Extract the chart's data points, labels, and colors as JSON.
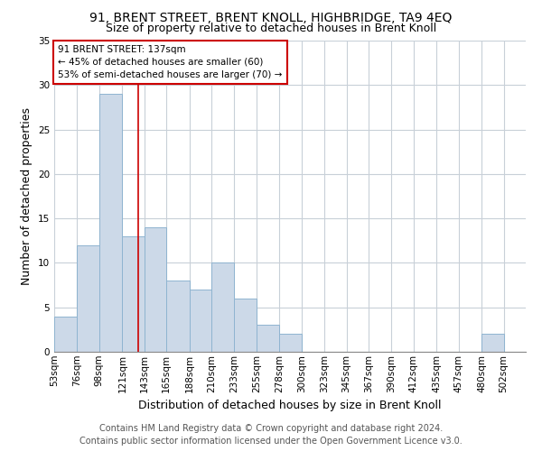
{
  "title": "91, BRENT STREET, BRENT KNOLL, HIGHBRIDGE, TA9 4EQ",
  "subtitle": "Size of property relative to detached houses in Brent Knoll",
  "xlabel": "Distribution of detached houses by size in Brent Knoll",
  "ylabel": "Number of detached properties",
  "bin_labels": [
    "53sqm",
    "76sqm",
    "98sqm",
    "121sqm",
    "143sqm",
    "165sqm",
    "188sqm",
    "210sqm",
    "233sqm",
    "255sqm",
    "278sqm",
    "300sqm",
    "323sqm",
    "345sqm",
    "367sqm",
    "390sqm",
    "412sqm",
    "435sqm",
    "457sqm",
    "480sqm",
    "502sqm"
  ],
  "bin_edges": [
    53,
    76,
    98,
    121,
    143,
    165,
    188,
    210,
    233,
    255,
    278,
    300,
    323,
    345,
    367,
    390,
    412,
    435,
    457,
    480,
    502
  ],
  "counts": [
    4,
    12,
    29,
    13,
    14,
    8,
    7,
    10,
    6,
    3,
    2,
    0,
    0,
    0,
    0,
    0,
    0,
    0,
    0,
    2,
    0
  ],
  "bar_facecolor": "#ccd9e8",
  "bar_edgecolor": "#8fb4d0",
  "property_line_x": 137,
  "property_line_color": "#cc0000",
  "annotation_text": "91 BRENT STREET: 137sqm\n← 45% of detached houses are smaller (60)\n53% of semi-detached houses are larger (70) →",
  "annotation_box_edgecolor": "#cc0000",
  "ylim": [
    0,
    35
  ],
  "yticks": [
    0,
    5,
    10,
    15,
    20,
    25,
    30,
    35
  ],
  "footer_line1": "Contains HM Land Registry data © Crown copyright and database right 2024.",
  "footer_line2": "Contains public sector information licensed under the Open Government Licence v3.0.",
  "background_color": "#ffffff",
  "grid_color": "#c8d0d8",
  "title_fontsize": 10,
  "subtitle_fontsize": 9,
  "axis_label_fontsize": 9,
  "tick_fontsize": 7.5,
  "annotation_fontsize": 7.5,
  "footer_fontsize": 7
}
